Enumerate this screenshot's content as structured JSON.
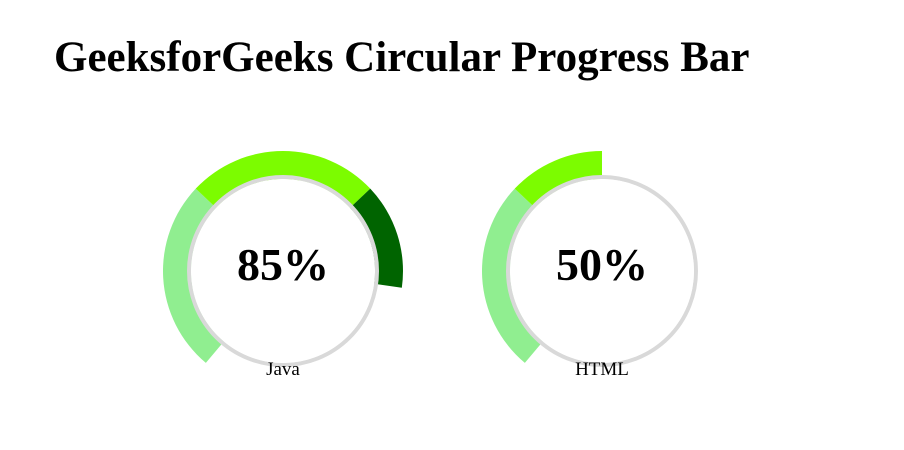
{
  "header": {
    "title": "GeeksforGeeks Circular Progress Bar"
  },
  "gauges": [
    {
      "label": "Java",
      "value_text": "85%",
      "percent": 85
    },
    {
      "label": "HTML",
      "value_text": "50%",
      "percent": 50
    }
  ],
  "colors": {
    "low_segment": "#90ee90",
    "mid_segment": "#7cfc00",
    "high_segment": "#006400",
    "dial_face": "#ffffff",
    "dial_shadow": "#d9d9d9"
  }
}
